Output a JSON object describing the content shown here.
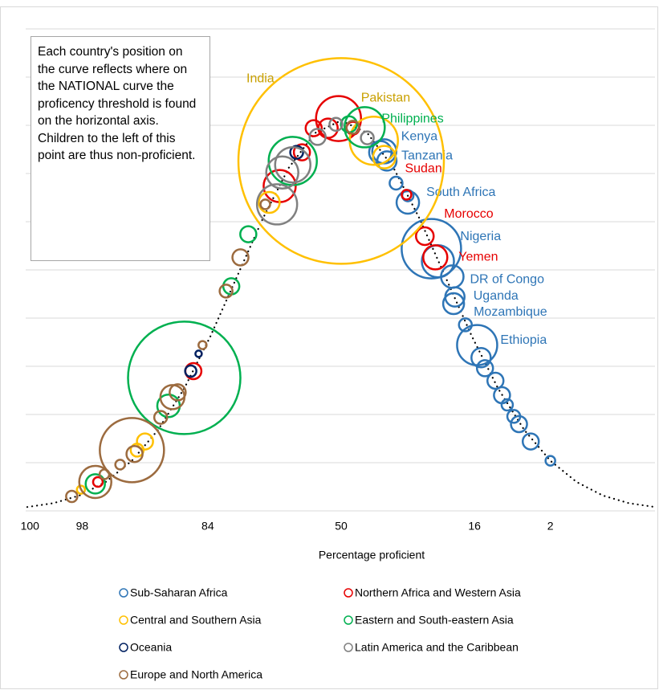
{
  "chart_data": {
    "type": "scatter",
    "annotation": "Each country's position on the curve reflects where on the NATIONAL curve the proficency threshold is found on the horizontal axis. Children to the left of this point are thus non-proficient.",
    "xlabel": "Percentage proficient",
    "xlim": [
      -2.4,
      2.4
    ],
    "ylim": [
      0,
      0.5
    ],
    "xticks": [
      {
        "value": -2.38,
        "label": "100"
      },
      {
        "value": -1.98,
        "label": "98"
      },
      {
        "value": -1.02,
        "label": "84"
      },
      {
        "value": 0,
        "label": "50"
      },
      {
        "value": 1.02,
        "label": "16"
      },
      {
        "value": 1.6,
        "label": "2"
      }
    ],
    "yticks": [
      0,
      0.05,
      0.1,
      0.15,
      0.2,
      0.25,
      0.3,
      0.35,
      0.4,
      0.45,
      0.5
    ],
    "grid": true,
    "curve": {
      "color": "#000000",
      "x": [
        -2.4,
        -2.2,
        -2.0,
        -1.8,
        -1.6,
        -1.4,
        -1.2,
        -1.0,
        -0.8,
        -0.6,
        -0.4,
        -0.2,
        0,
        0.2,
        0.4,
        0.6,
        0.8,
        1.0,
        1.2,
        1.4,
        1.6,
        1.8,
        2.0,
        2.2,
        2.4
      ],
      "y": [
        0.004,
        0.008,
        0.016,
        0.03,
        0.052,
        0.084,
        0.127,
        0.181,
        0.242,
        0.303,
        0.356,
        0.392,
        0.405,
        0.392,
        0.356,
        0.303,
        0.242,
        0.181,
        0.127,
        0.084,
        0.052,
        0.03,
        0.016,
        0.008,
        0.004
      ]
    },
    "series": [
      {
        "name": "Sub-Saharan Africa",
        "color": "#2e75b6",
        "x": [
          0.33,
          0.3,
          0.35,
          0.42,
          0.51,
          0.51,
          0.69,
          0.74,
          0.85,
          0.87,
          0.86,
          0.95,
          1.04,
          1.07,
          1.1,
          1.18,
          1.23,
          1.27,
          1.32,
          1.36,
          1.45,
          1.6
        ],
        "y": [
          0.373,
          0.372,
          0.363,
          0.34,
          0.32,
          0.327,
          0.272,
          0.259,
          0.243,
          0.222,
          0.215,
          0.193,
          0.172,
          0.159,
          0.148,
          0.135,
          0.12,
          0.11,
          0.098,
          0.09,
          0.072,
          0.052
        ],
        "sizes": [
          15,
          14,
          12,
          8,
          14,
          7,
          37,
          20,
          14,
          12,
          13,
          8,
          25,
          12,
          10,
          10,
          10,
          7,
          8,
          10,
          10,
          6
        ],
        "labels": [
          "Kenya",
          null,
          "Tanzania",
          null,
          "South Africa",
          null,
          "Nigeria",
          null,
          "DR of Congo",
          "Uganda",
          "Mozambique",
          null,
          "Ethiopia",
          null,
          null,
          null,
          null,
          null,
          null,
          null,
          null,
          null
        ]
      },
      {
        "name": "Northern Africa and Western Asia",
        "color": "#e60000",
        "x": [
          0.5,
          0.64,
          0.72,
          -0.02,
          -0.1,
          -0.21,
          0.09,
          -0.47,
          -0.3,
          -1.13,
          -1.86
        ],
        "y": [
          0.328,
          0.285,
          0.263,
          0.407,
          0.397,
          0.397,
          0.397,
          0.337,
          0.372,
          0.145,
          0.03
        ],
        "sizes": [
          6,
          11,
          15,
          28,
          12,
          10,
          8,
          20,
          10,
          10,
          6
        ],
        "labels": [
          "Sudan",
          "Morocco",
          "Yemen",
          null,
          null,
          null,
          null,
          null,
          null,
          null,
          null
        ]
      },
      {
        "name": "Central and Southern Asia",
        "color": "#ffc000",
        "x": [
          0,
          0.25,
          0.33,
          -0.55,
          -1.5,
          -1.56,
          -1.99
        ],
        "y": [
          0.363,
          0.384,
          0.367,
          0.32,
          0.072,
          0.063,
          0.022
        ],
        "sizes": [
          128,
          30,
          14,
          13,
          10,
          8,
          5
        ],
        "labels": [
          "India",
          "Pakistan",
          null,
          null,
          null,
          null,
          null
        ]
      },
      {
        "name": "Eastern and South-eastern Asia",
        "color": "#00b050",
        "x": [
          0.18,
          -1.2,
          -1.32,
          -0.37,
          -0.71,
          -0.84,
          -1.88,
          0.06
        ],
        "y": [
          0.398,
          0.138,
          0.109,
          0.363,
          0.287,
          0.233,
          0.028,
          0.401
        ],
        "sizes": [
          25,
          70,
          14,
          30,
          10,
          10,
          12,
          10
        ],
        "labels": [
          "Philippines",
          null,
          null,
          null,
          null,
          null,
          null,
          null
        ]
      },
      {
        "name": "Oceania",
        "color": "#002060",
        "x": [
          -1.15,
          -0.34,
          -1.09
        ],
        "y": [
          0.145,
          0.372,
          0.163
        ],
        "sizes": [
          7,
          8,
          4
        ]
      },
      {
        "name": "Latin America and the Caribbean",
        "color": "#808080",
        "x": [
          -0.49,
          -0.45,
          -0.37,
          0.2,
          -0.18,
          -0.04
        ],
        "y": [
          0.318,
          0.351,
          0.359,
          0.387,
          0.388,
          0.401
        ],
        "sizes": [
          25,
          20,
          22,
          8,
          10,
          8
        ]
      },
      {
        "name": "Europe and North America",
        "color": "#9c6b3f",
        "x": [
          -1.6,
          -1.88,
          -2.06,
          -1.81,
          -1.69,
          -1.58,
          -1.29,
          -1.25,
          -1.38,
          -0.77,
          -0.88,
          -1.06,
          0.09,
          -0.58
        ],
        "y": [
          0.063,
          0.03,
          0.015,
          0.038,
          0.048,
          0.059,
          0.118,
          0.123,
          0.097,
          0.263,
          0.228,
          0.172,
          0.398,
          0.318
        ],
        "sizes": [
          40,
          20,
          7,
          6,
          6,
          10,
          15,
          10,
          8,
          10,
          8,
          5,
          8,
          6
        ]
      }
    ]
  }
}
